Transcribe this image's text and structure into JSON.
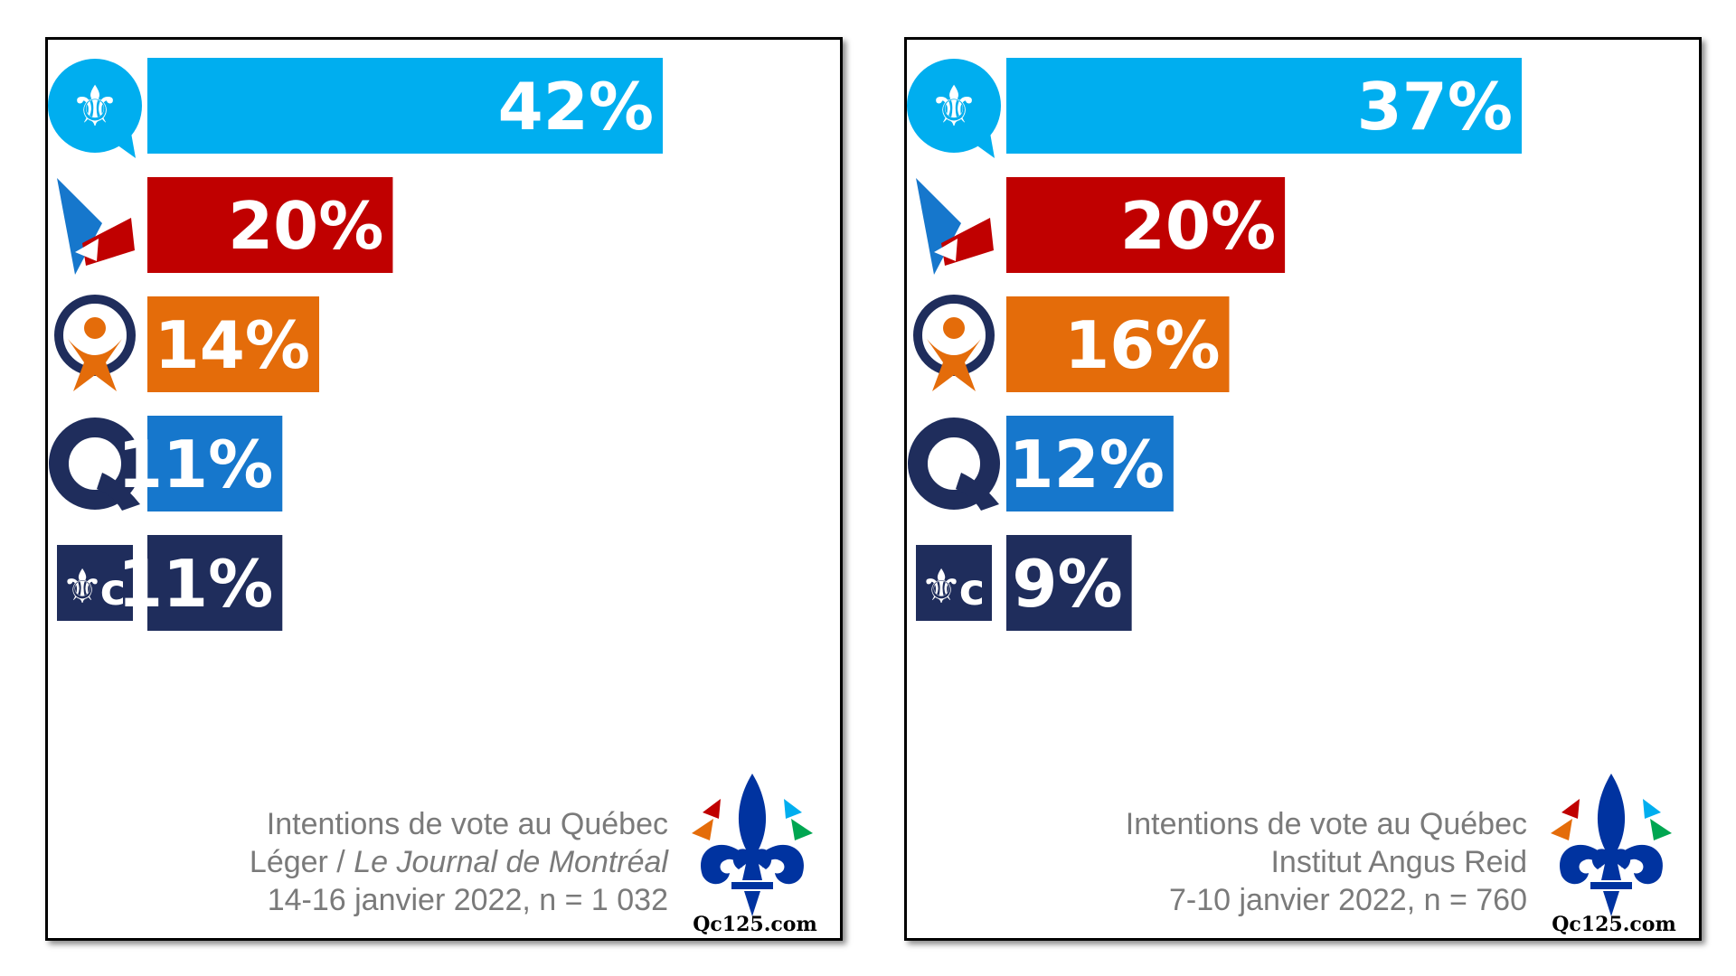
{
  "chart_data": [
    {
      "type": "bar",
      "orientation": "horizontal",
      "categories": [
        "CAQ",
        "PLQ",
        "QS",
        "PQ",
        "PCQ"
      ],
      "series": [
        {
          "values": [
            42,
            20,
            14,
            11,
            11
          ]
        }
      ],
      "value_labels": [
        "42%",
        "20%",
        "14%",
        "11%",
        "11%"
      ],
      "colors": [
        "#00aeef",
        "#c00000",
        "#e46c0a",
        "#1677cc",
        "#1f2d5c"
      ],
      "xlim": [
        0,
        42
      ],
      "caption": {
        "line1": "Intentions de vote au Québec",
        "line2_a": "Léger / ",
        "line2_b": "Le Journal de Montréal",
        "line3": "14-16 janvier 2022, n = 1 032"
      }
    },
    {
      "type": "bar",
      "orientation": "horizontal",
      "categories": [
        "CAQ",
        "PLQ",
        "QS",
        "PQ",
        "PCQ"
      ],
      "series": [
        {
          "values": [
            37,
            20,
            16,
            12,
            9
          ]
        }
      ],
      "value_labels": [
        "37%",
        "20%",
        "16%",
        "12%",
        "9%"
      ],
      "colors": [
        "#00aeef",
        "#c00000",
        "#e46c0a",
        "#1677cc",
        "#1f2d5c"
      ],
      "xlim": [
        0,
        37
      ],
      "caption": {
        "line1": "Intentions de vote au Québec",
        "line2_a": "Institut Angus Reid",
        "line2_b": "",
        "line3": "7-10 janvier 2022, n = 760"
      }
    }
  ],
  "logo": {
    "text": "Qc125.com",
    "colors": [
      "#0033a0",
      "#e46c0a",
      "#c00000",
      "#00a651",
      "#00aeef"
    ]
  },
  "party_icons": [
    "caq-icon",
    "plq-icon",
    "qs-icon",
    "pq-icon",
    "pcq-icon"
  ]
}
